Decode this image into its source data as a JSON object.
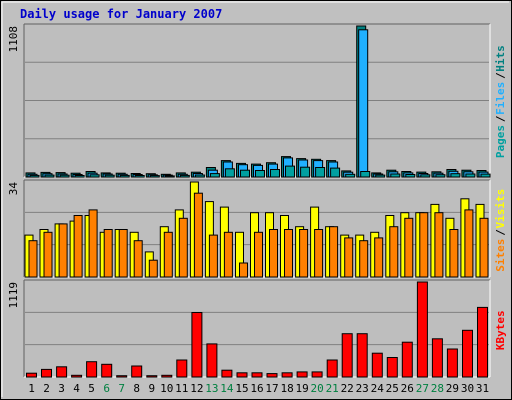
{
  "chart_data": {
    "title": "Daily usage for January 2007",
    "categories": [
      "1",
      "2",
      "3",
      "4",
      "5",
      "6",
      "7",
      "8",
      "9",
      "10",
      "11",
      "12",
      "13",
      "14",
      "15",
      "16",
      "17",
      "18",
      "19",
      "20",
      "21",
      "22",
      "23",
      "24",
      "25",
      "26",
      "27",
      "28",
      "29",
      "30",
      "31"
    ],
    "weekend_days": [
      "6",
      "7",
      "13",
      "14",
      "20",
      "21",
      "27",
      "28"
    ],
    "colors": {
      "title": "#0000cc",
      "pages": "#00a0a0",
      "files": "#20b0ff",
      "hits": "#008080",
      "visits": "#ffff00",
      "sites": "#ff8000",
      "kbytes": "#ff0000",
      "weekday_tick": "#000000",
      "weekend_tick": "#008040"
    },
    "panels": [
      {
        "type": "bar",
        "ymax_label": "1108",
        "ylim": [
          0,
          1108
        ],
        "side_legend": [
          "Pages",
          "/",
          "Files",
          "/",
          "Hits"
        ],
        "series": [
          {
            "name": "Hits",
            "values": [
              30,
              34,
              32,
              28,
              40,
              30,
              28,
              26,
              24,
              20,
              30,
              35,
              70,
              120,
              100,
              95,
              105,
              150,
              135,
              130,
              120,
              45,
              1108,
              30,
              50,
              40,
              36,
              38,
              55,
              50,
              48
            ]
          },
          {
            "name": "Files",
            "values": [
              20,
              24,
              22,
              18,
              28,
              22,
              20,
              18,
              16,
              14,
              20,
              26,
              50,
              110,
              90,
              85,
              95,
              140,
              125,
              120,
              110,
              35,
              1080,
              22,
              38,
              30,
              26,
              28,
              42,
              38,
              36
            ]
          },
          {
            "name": "Pages",
            "values": [
              12,
              14,
              13,
              11,
              16,
              13,
              12,
              11,
              10,
              8,
              12,
              15,
              25,
              60,
              50,
              48,
              55,
              80,
              72,
              70,
              65,
              20,
              40,
              14,
              22,
              18,
              16,
              17,
              24,
              22,
              21
            ]
          }
        ]
      },
      {
        "type": "bar",
        "ymax_label": "34",
        "ylim": [
          0,
          34
        ],
        "side_legend": [
          "Sites",
          "/",
          "Visits"
        ],
        "series": [
          {
            "name": "Visits",
            "values": [
              15,
              17,
              19,
              20,
              22,
              16,
              17,
              16,
              9,
              18,
              24,
              34,
              27,
              25,
              16,
              23,
              23,
              22,
              18,
              25,
              18,
              15,
              15,
              16,
              22,
              23,
              23,
              26,
              21,
              28,
              26
            ]
          },
          {
            "name": "Sites",
            "values": [
              13,
              16,
              19,
              22,
              24,
              17,
              17,
              13,
              6,
              16,
              21,
              30,
              15,
              16,
              5,
              16,
              17,
              17,
              17,
              17,
              18,
              14,
              13,
              14,
              18,
              21,
              23,
              23,
              17,
              24,
              21
            ]
          }
        ]
      },
      {
        "type": "bar",
        "ymax_label": "1119",
        "ylim": [
          0,
          1119
        ],
        "side_legend": [
          "KBytes"
        ],
        "series": [
          {
            "name": "KBytes",
            "values": [
              45,
              90,
              120,
              20,
              180,
              150,
              15,
              130,
              15,
              20,
              200,
              760,
              390,
              80,
              50,
              50,
              40,
              50,
              60,
              60,
              200,
              510,
              510,
              280,
              230,
              410,
              1119,
              450,
              330,
              550,
              820
            ]
          }
        ]
      }
    ]
  }
}
